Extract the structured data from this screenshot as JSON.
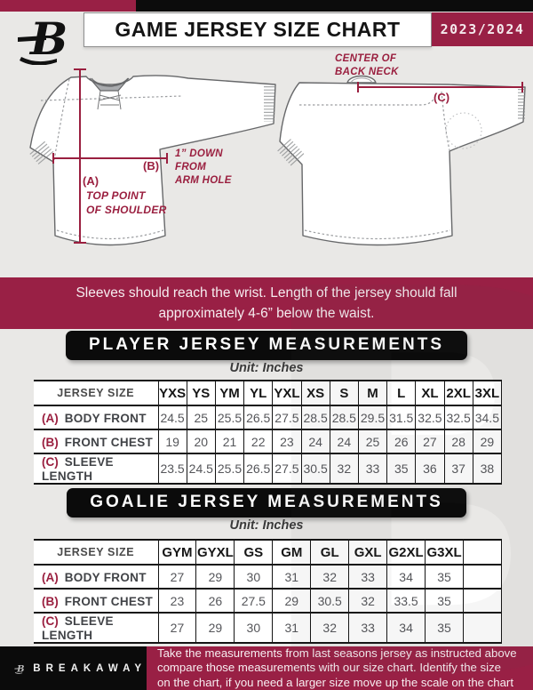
{
  "header": {
    "title": "GAME JERSEY SIZE CHART",
    "season": "2023/2024"
  },
  "diagram": {
    "front": {
      "a_key": "(A)",
      "a_note": [
        "TOP POINT",
        "OF SHOULDER"
      ],
      "b_key": "(B)",
      "b_note": [
        "1” DOWN",
        "FROM",
        "ARM HOLE"
      ]
    },
    "back": {
      "c_key": "(C)",
      "c_note": [
        "CENTER OF",
        "BACK NECK"
      ]
    }
  },
  "notice": "Sleeves should reach the wrist. Length of the jersey should fall approximately 4-6” below the waist.",
  "player_table": {
    "title": "PLAYER JERSEY MEASUREMENTS",
    "unit": "Unit: Inches",
    "header": [
      "JERSEY SIZE",
      "YXS",
      "YS",
      "YM",
      "YL",
      "YXL",
      "XS",
      "S",
      "M",
      "L",
      "XL",
      "2XL",
      "3XL"
    ],
    "rows": [
      {
        "key": "(A)",
        "label": "BODY FRONT",
        "values": [
          "24.5",
          "25",
          "25.5",
          "26.5",
          "27.5",
          "28.5",
          "28.5",
          "29.5",
          "31.5",
          "32.5",
          "32.5",
          "34.5"
        ]
      },
      {
        "key": "(B)",
        "label": "FRONT CHEST",
        "values": [
          "19",
          "20",
          "21",
          "22",
          "23",
          "24",
          "24",
          "25",
          "26",
          "27",
          "28",
          "29"
        ]
      },
      {
        "key": "(C)",
        "label": "SLEEVE LENGTH",
        "values": [
          "23.5",
          "24.5",
          "25.5",
          "26.5",
          "27.5",
          "30.5",
          "32",
          "33",
          "35",
          "36",
          "37",
          "38"
        ]
      }
    ]
  },
  "goalie_table": {
    "title": "GOALIE JERSEY MEASUREMENTS",
    "unit": "Unit: Inches",
    "header": [
      "JERSEY SIZE",
      "GYM",
      "GYXL",
      "GS",
      "GM",
      "GL",
      "GXL",
      "G2XL",
      "G3XL",
      ""
    ],
    "rows": [
      {
        "key": "(A)",
        "label": "BODY FRONT",
        "values": [
          "27",
          "29",
          "30",
          "31",
          "32",
          "33",
          "34",
          "35",
          ""
        ]
      },
      {
        "key": "(B)",
        "label": "FRONT CHEST",
        "values": [
          "23",
          "26",
          "27.5",
          "29",
          "30.5",
          "32",
          "33.5",
          "35",
          ""
        ]
      },
      {
        "key": "(C)",
        "label": "SLEEVE LENGTH",
        "values": [
          "27",
          "29",
          "30",
          "31",
          "32",
          "33",
          "34",
          "35",
          ""
        ]
      }
    ]
  },
  "footer": {
    "brand": "BREAKAWAY",
    "note": [
      "Take the measurements from last seasons jersey as instructed above",
      "compare those measurements  with our size chart. Identify the size",
      "on the chart, if you need a larger size move up the scale on the chart"
    ]
  },
  "colors": {
    "maroon": "#992045",
    "black": "#0b0b0b",
    "page_bg": "#e9e8e6"
  }
}
